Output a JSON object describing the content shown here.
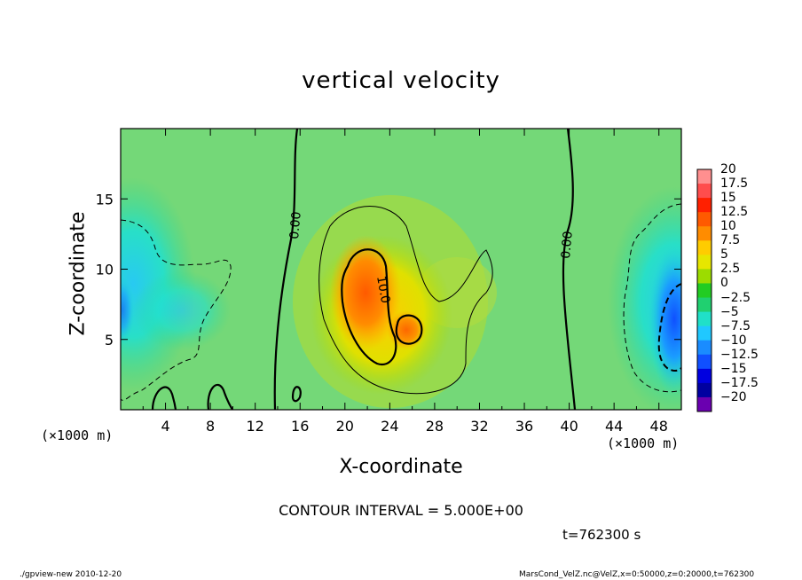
{
  "chart_data": {
    "type": "heatmap",
    "title": "vertical velocity",
    "xlabel": "X-coordinate",
    "ylabel": "Z-coordinate",
    "x_unit": "(×1000 m)",
    "x_unit_right": "(×1000 m)",
    "xlim": [
      0,
      50
    ],
    "ylim": [
      0,
      20
    ],
    "xticks": [
      "4",
      "8",
      "12",
      "16",
      "20",
      "24",
      "28",
      "32",
      "36",
      "40",
      "44",
      "48"
    ],
    "yticks": [
      "5",
      "10",
      "15"
    ],
    "colorbar_labels": [
      "20",
      "17.5",
      "15",
      "12.5",
      "10",
      "7.5",
      "5",
      "2.5",
      "0",
      "−2.5",
      "−5",
      "−7.5",
      "−10",
      "−12.5",
      "−15",
      "−17.5",
      "−20"
    ],
    "colorbar_colors": [
      "#ff8f8f",
      "#ff4d4d",
      "#ff2000",
      "#ff5a00",
      "#ff8c00",
      "#ffcc00",
      "#e6e600",
      "#9cdc00",
      "#22cc22",
      "#20d070",
      "#20e0c8",
      "#20c8ff",
      "#1a8cff",
      "#1050ff",
      "#0000e0",
      "#0000a0",
      "#6a00b0"
    ],
    "contour_labels": [
      "0.00",
      "0.00",
      "10.0"
    ],
    "features": [
      {
        "name": "updraft core",
        "x": 21.5,
        "z": 8.0,
        "value": 12.5
      },
      {
        "name": "secondary updraft",
        "x": 25.5,
        "z": 5.5,
        "value": 10.0
      },
      {
        "name": "downdraft left",
        "x": 0.5,
        "z": 7.0,
        "value": -8.0
      },
      {
        "name": "downdraft right",
        "x": 48.8,
        "z": 6.0,
        "value": -11.0
      }
    ]
  },
  "annotations": {
    "contour_interval": "CONTOUR INTERVAL = 5.000E+00",
    "time": "t=762300  s",
    "footer_left": "./gpview-new  2010-12-20",
    "footer_right": "MarsCond_VelZ.nc@VelZ,x=0:50000,z=0:20000,t=762300"
  }
}
